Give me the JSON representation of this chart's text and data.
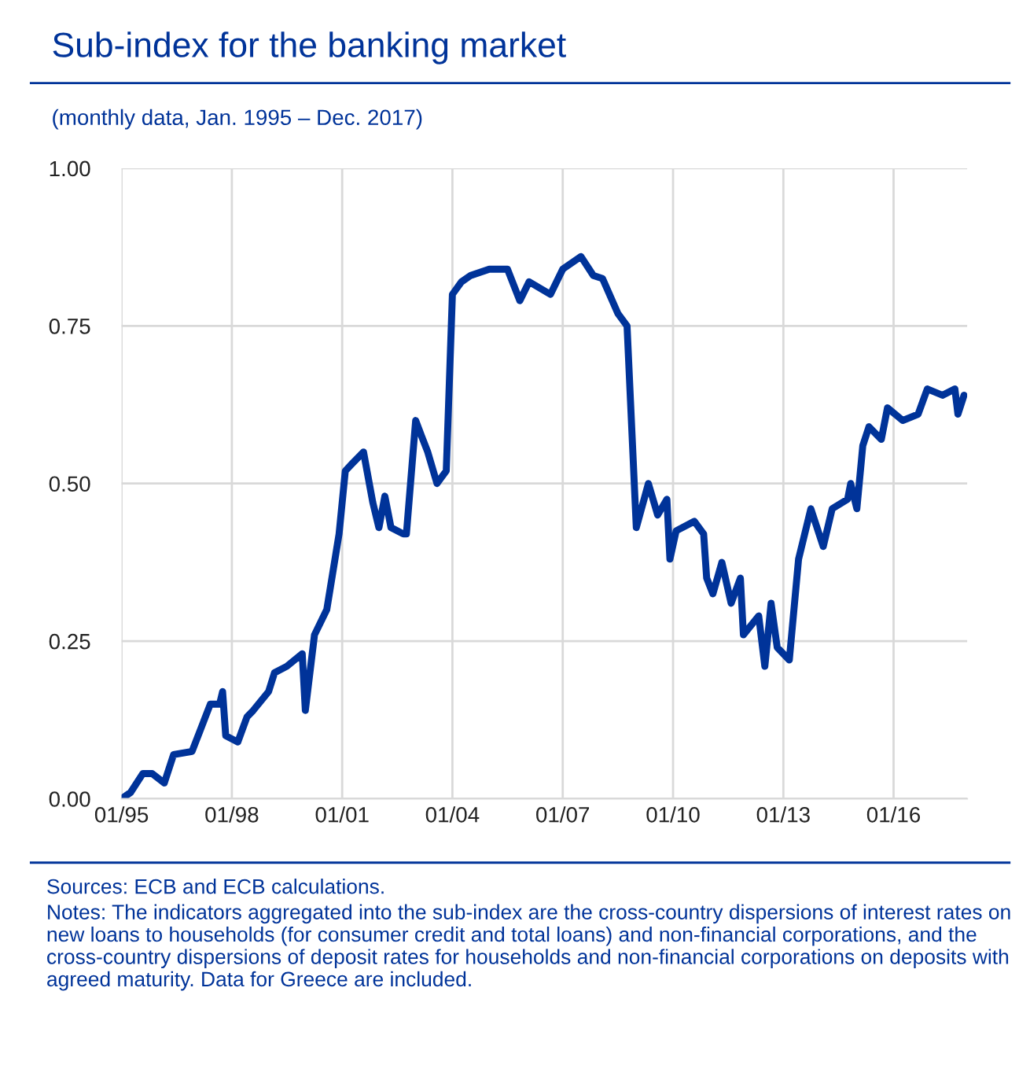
{
  "chart_data": {
    "type": "line",
    "title": "Sub-index for the banking market",
    "subtitle": "(monthly data, Jan. 1995 – Dec. 2017)",
    "series": [
      {
        "color": "#003399",
        "x": [
          "1995-01",
          "1995-04",
          "1995-08",
          "1995-11",
          "1996-03",
          "1996-06",
          "1996-12",
          "1997-06",
          "1997-09",
          "1997-10",
          "1997-11",
          "1998-03",
          "1998-06",
          "1998-08",
          "1999-01",
          "1999-03",
          "1999-07",
          "1999-12",
          "2000-01",
          "2000-04",
          "2000-08",
          "2000-12",
          "2001-02",
          "2001-04",
          "2001-08",
          "2001-11",
          "2002-01",
          "2002-03",
          "2002-05",
          "2002-09",
          "2002-10",
          "2003-01",
          "2003-03",
          "2003-05",
          "2003-08",
          "2003-11",
          "2004-01",
          "2004-04",
          "2004-07",
          "2005-01",
          "2005-07",
          "2005-11",
          "2006-02",
          "2006-09",
          "2007-01",
          "2007-07",
          "2007-11",
          "2008-02",
          "2008-07",
          "2008-10",
          "2009-01",
          "2009-05",
          "2009-08",
          "2009-11",
          "2009-12",
          "2010-02",
          "2010-08",
          "2010-11",
          "2010-12",
          "2011-02",
          "2011-05",
          "2011-08",
          "2011-11",
          "2011-12",
          "2012-05",
          "2012-07",
          "2012-09",
          "2012-11",
          "2013-03",
          "2013-06",
          "2013-10",
          "2014-02",
          "2014-05",
          "2014-10",
          "2014-11",
          "2015-01",
          "2015-03",
          "2015-05",
          "2015-09",
          "2015-11",
          "2016-04",
          "2016-09",
          "2016-12",
          "2017-05",
          "2017-09",
          "2017-10",
          "2017-12"
        ],
        "values": [
          0.0,
          0.01,
          0.04,
          0.04,
          0.025,
          0.07,
          0.075,
          0.15,
          0.15,
          0.17,
          0.1,
          0.09,
          0.13,
          0.14,
          0.17,
          0.2,
          0.21,
          0.23,
          0.14,
          0.26,
          0.3,
          0.42,
          0.52,
          0.53,
          0.55,
          0.47,
          0.43,
          0.48,
          0.43,
          0.42,
          0.42,
          0.6,
          0.575,
          0.55,
          0.5,
          0.52,
          0.8,
          0.82,
          0.83,
          0.84,
          0.84,
          0.79,
          0.82,
          0.8,
          0.84,
          0.86,
          0.83,
          0.825,
          0.77,
          0.75,
          0.43,
          0.5,
          0.45,
          0.475,
          0.38,
          0.425,
          0.44,
          0.42,
          0.35,
          0.325,
          0.375,
          0.31,
          0.35,
          0.26,
          0.29,
          0.21,
          0.31,
          0.24,
          0.22,
          0.38,
          0.46,
          0.4,
          0.46,
          0.475,
          0.5,
          0.46,
          0.56,
          0.59,
          0.57,
          0.62,
          0.6,
          0.61,
          0.65,
          0.64,
          0.65,
          0.61,
          0.64
        ]
      }
    ],
    "xlim": [
      "1995-01",
      "2018-01"
    ],
    "xticks": [
      {
        "value": "1995-01",
        "label": "01/95"
      },
      {
        "value": "1998-01",
        "label": "01/98"
      },
      {
        "value": "2001-01",
        "label": "01/01"
      },
      {
        "value": "2004-01",
        "label": "01/04"
      },
      {
        "value": "2007-01",
        "label": "01/07"
      },
      {
        "value": "2010-01",
        "label": "01/10"
      },
      {
        "value": "2013-01",
        "label": "01/13"
      },
      {
        "value": "2016-01",
        "label": "01/16"
      }
    ],
    "ylim": [
      0,
      1
    ],
    "yticks": [
      {
        "value": 0,
        "label": "0.00"
      },
      {
        "value": 0.25,
        "label": "0.25"
      },
      {
        "value": 0.5,
        "label": "0.50"
      },
      {
        "value": 0.75,
        "label": "0.75"
      },
      {
        "value": 1,
        "label": "1.00"
      }
    ],
    "grid": true,
    "marker": "none",
    "line_style": "solid",
    "annotations": [
      "Sources: ECB and ECB calculations.",
      "Notes: The indicators aggregated into the sub-index are the cross-country dispersions of interest rates on new loans to households (for consumer credit and total loans) and non-financial corporations, and the cross-country dispersions of deposit rates for households and non-financial corporations on deposits with agreed maturity. Data for Greece are included."
    ]
  }
}
